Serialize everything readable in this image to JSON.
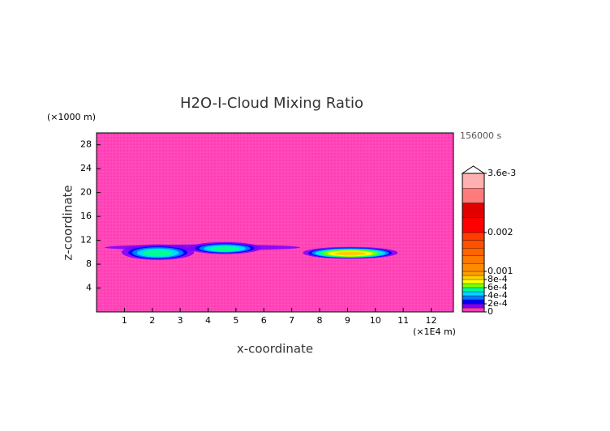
{
  "chart_data": {
    "type": "contour",
    "title": "H2O-I-Cloud Mixing Ratio",
    "time_label": "156000 s",
    "x_unit_label": "(×1E4 m)",
    "y_unit_label": "(×1000 m)",
    "xlabel": "x-coordinate",
    "ylabel": "z-coordinate",
    "xlim": [
      0,
      12.8
    ],
    "ylim": [
      0,
      30
    ],
    "xticks": [
      1,
      2,
      3,
      4,
      5,
      6,
      7,
      8,
      9,
      10,
      11,
      12
    ],
    "yticks": [
      4,
      8,
      12,
      16,
      20,
      24,
      28
    ],
    "background_color": "#ff3cb4",
    "clouds": [
      {
        "x": 3.8,
        "z": 10.8,
        "width": 7.0,
        "height": 1.0,
        "peak": 0.00015
      },
      {
        "x": 2.2,
        "z": 10.0,
        "width": 2.6,
        "height": 2.6,
        "peak": 0.0006
      },
      {
        "x": 4.6,
        "z": 10.7,
        "width": 2.6,
        "height": 2.0,
        "peak": 0.0006
      },
      {
        "x": 9.1,
        "z": 9.9,
        "width": 3.4,
        "height": 2.0,
        "peak": 0.0009
      }
    ],
    "levels": [
      0,
      0.0001,
      0.0002,
      0.0003,
      0.0004,
      0.0005,
      0.0006,
      0.0007,
      0.0008,
      0.0009,
      0.001,
      0.0012,
      0.0014,
      0.0016,
      0.0018,
      0.002,
      0.0024,
      0.0028,
      0.0032,
      0.0036
    ],
    "level_colors": [
      "#ff3cb4",
      "#7a00ff",
      "#0000ff",
      "#0078ff",
      "#00d8ff",
      "#00ff90",
      "#80ff00",
      "#ffff00",
      "#ffd000",
      "#ffa000",
      "#ff8c00",
      "#ff7800",
      "#ff6400",
      "#ff5000",
      "#ff3c00",
      "#ff0000",
      "#e00000",
      "#ff7a7a",
      "#ffb0b0"
    ],
    "colorbar_ticks": [
      {
        "value": 0.0036,
        "label": "3.6e-3"
      },
      0.002,
      0.001,
      {
        "value": 0.0008,
        "label": "8e-4"
      },
      {
        "value": 0.0006,
        "label": "6e-4"
      },
      {
        "value": 0.0004,
        "label": "4e-4"
      },
      {
        "value": 0.0002,
        "label": "2e-4"
      },
      0
    ]
  }
}
